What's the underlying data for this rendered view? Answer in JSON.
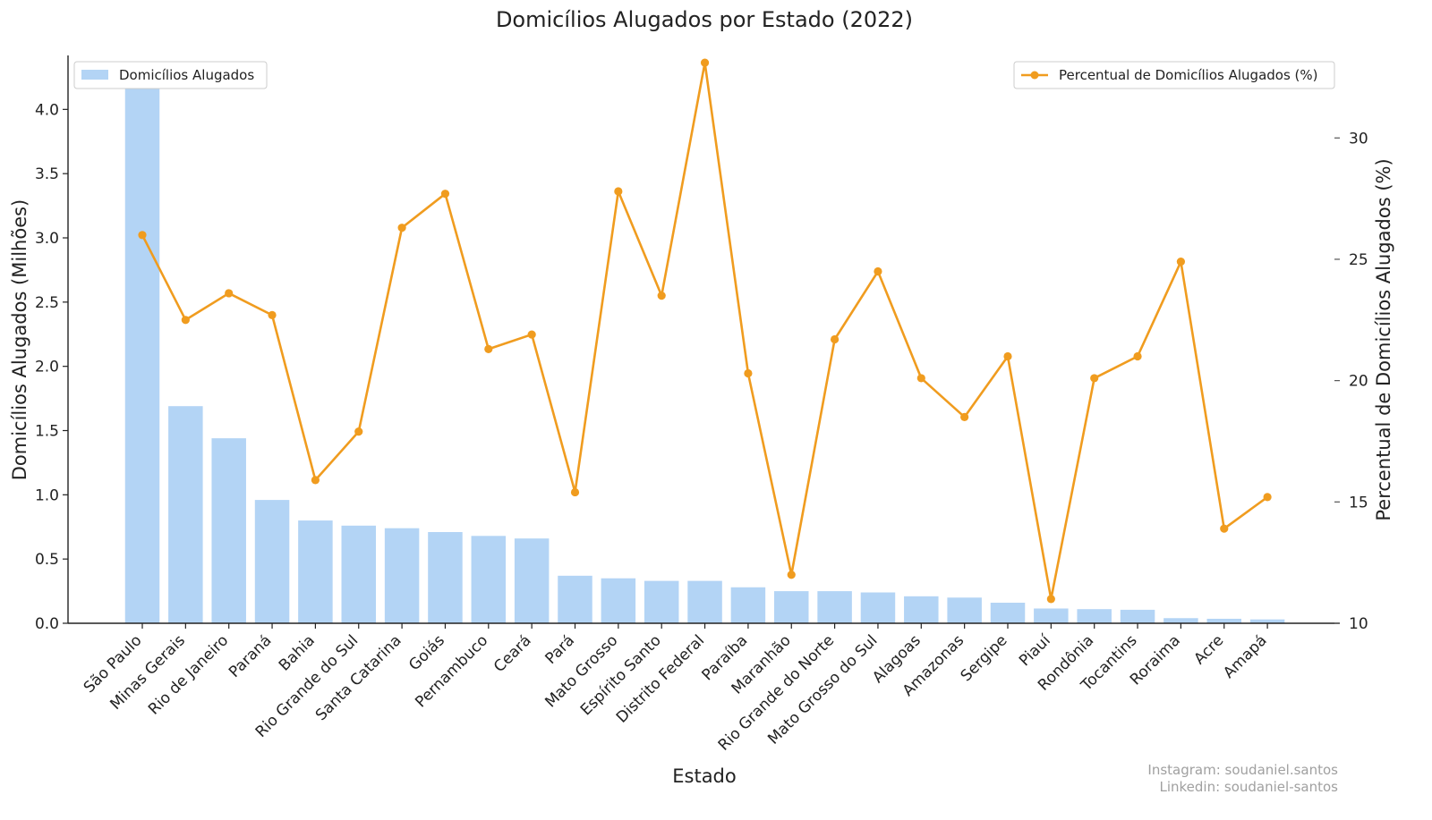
{
  "chart_data": {
    "type": "bar",
    "title": "Domicílios Alugados por Estado (2022)",
    "xlabel": "Estado",
    "ylabel": "Domicílios Alugados (Milhões)",
    "y2label": "Percentual de Domicílios Alugados (%)",
    "categories": [
      "São Paulo",
      "Minas Gerais",
      "Rio de Janeiro",
      "Paraná",
      "Bahia",
      "Rio Grande do Sul",
      "Santa Catarina",
      "Goiás",
      "Pernambuco",
      "Ceará",
      "Pará",
      "Mato Grosso",
      "Espírito Santo",
      "Distrito Federal",
      "Paraíba",
      "Maranhão",
      "Rio Grande do Norte",
      "Mato Grosso do Sul",
      "Alagoas",
      "Amazonas",
      "Sergipe",
      "Piauí",
      "Rondônia",
      "Tocantins",
      "Roraima",
      "Acre",
      "Amapá"
    ],
    "ylim": [
      0,
      4.42
    ],
    "y2lim": [
      10,
      33.4
    ],
    "yticks": [
      "0.0",
      "0.5",
      "1.0",
      "1.5",
      "2.0",
      "2.5",
      "3.0",
      "3.5",
      "4.0"
    ],
    "y2ticks": [
      "10",
      "15",
      "20",
      "25",
      "30"
    ],
    "series": [
      {
        "name": "Domicílios Alugados",
        "type": "bar",
        "axis": "left",
        "color": "#b3d4f5",
        "values": [
          4.2,
          1.69,
          1.44,
          0.96,
          0.8,
          0.76,
          0.74,
          0.71,
          0.68,
          0.66,
          0.37,
          0.35,
          0.33,
          0.33,
          0.28,
          0.25,
          0.25,
          0.24,
          0.21,
          0.2,
          0.16,
          0.115,
          0.11,
          0.105,
          0.04,
          0.035,
          0.03
        ]
      },
      {
        "name": "Percentual de Domicílios Alugados (%)",
        "type": "line",
        "axis": "right",
        "color": "#f09c1f",
        "values": [
          26.0,
          22.5,
          23.6,
          22.7,
          15.9,
          17.9,
          26.3,
          27.7,
          21.3,
          21.9,
          15.4,
          27.8,
          23.5,
          33.1,
          20.3,
          12.0,
          21.7,
          24.5,
          20.1,
          18.5,
          21.0,
          11.0,
          20.1,
          21.0,
          24.9,
          13.9,
          15.2
        ]
      }
    ],
    "grid": false,
    "legend_left": "top-left",
    "legend_right": "top-right"
  },
  "credits": {
    "instagram": "Instagram: soudaniel.santos",
    "linkedin": "Linkedin: soudaniel-santos"
  }
}
